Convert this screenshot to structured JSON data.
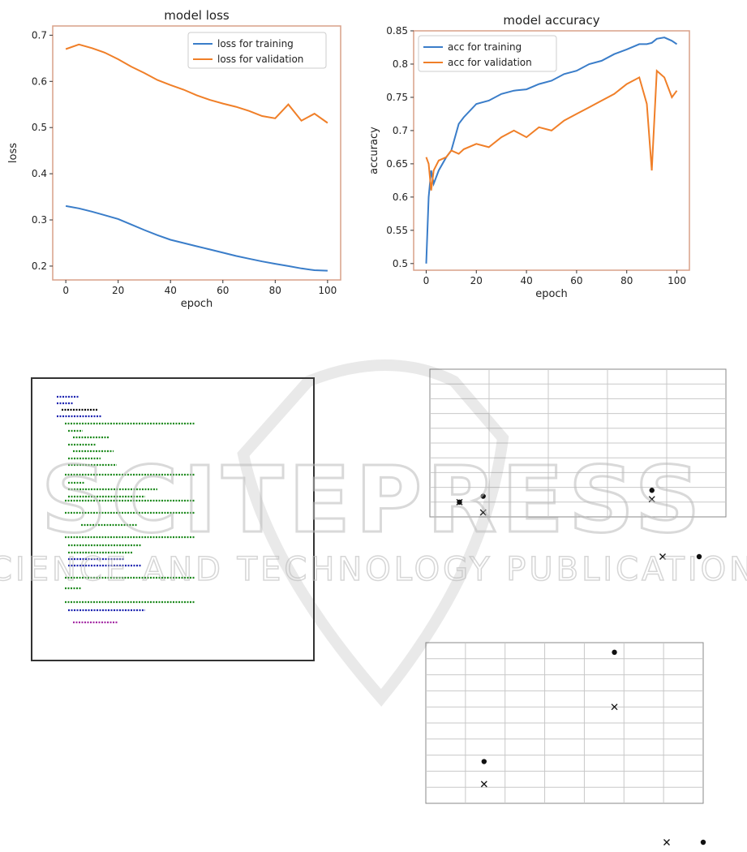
{
  "chart_data": [
    {
      "type": "line",
      "title": "model loss",
      "xlabel": "epoch",
      "ylabel": "loss",
      "xlim": [
        -5,
        105
      ],
      "ylim": [
        0.17,
        0.72
      ],
      "xticks": [
        0,
        20,
        40,
        60,
        80,
        100
      ],
      "yticks": [
        0.2,
        0.3,
        0.4,
        0.5,
        0.6,
        0.7
      ],
      "legend_position": "top-right",
      "x": [
        0,
        5,
        10,
        15,
        20,
        25,
        30,
        35,
        40,
        45,
        50,
        55,
        60,
        65,
        70,
        75,
        80,
        85,
        90,
        95,
        100
      ],
      "series": [
        {
          "name": "loss for training",
          "color": "#3a7dc9",
          "values": [
            0.33,
            0.325,
            0.318,
            0.31,
            0.302,
            0.29,
            0.278,
            0.267,
            0.257,
            0.25,
            0.243,
            0.236,
            0.229,
            0.222,
            0.216,
            0.21,
            0.205,
            0.2,
            0.195,
            0.191,
            0.19
          ]
        },
        {
          "name": "loss for validation",
          "color": "#f07f28",
          "values": [
            0.67,
            0.68,
            0.672,
            0.662,
            0.648,
            0.632,
            0.618,
            0.603,
            0.592,
            0.582,
            0.57,
            0.56,
            0.552,
            0.545,
            0.536,
            0.525,
            0.52,
            0.55,
            0.515,
            0.53,
            0.51
          ]
        }
      ]
    },
    {
      "type": "line",
      "title": "model accuracy",
      "xlabel": "epoch",
      "ylabel": "accuracy",
      "xlim": [
        -5,
        105
      ],
      "ylim": [
        0.49,
        0.85
      ],
      "xticks": [
        0,
        20,
        40,
        60,
        80,
        100
      ],
      "yticks": [
        0.5,
        0.55,
        0.6,
        0.65,
        0.7,
        0.75,
        0.8,
        0.85
      ],
      "legend_position": "top-left",
      "x": [
        0,
        1,
        2,
        3,
        5,
        8,
        10,
        13,
        15,
        20,
        25,
        30,
        35,
        40,
        45,
        50,
        55,
        60,
        65,
        70,
        75,
        80,
        85,
        88,
        90,
        92,
        95,
        98,
        100
      ],
      "series": [
        {
          "name": "acc  for training",
          "color": "#3a7dc9",
          "values": [
            0.5,
            0.6,
            0.64,
            0.62,
            0.64,
            0.66,
            0.67,
            0.71,
            0.72,
            0.74,
            0.745,
            0.755,
            0.76,
            0.762,
            0.77,
            0.775,
            0.785,
            0.79,
            0.8,
            0.805,
            0.815,
            0.822,
            0.83,
            0.83,
            0.832,
            0.838,
            0.84,
            0.835,
            0.83
          ]
        },
        {
          "name": "acc  for validation",
          "color": "#f07f28",
          "values": [
            0.66,
            0.65,
            0.61,
            0.64,
            0.655,
            0.66,
            0.67,
            0.665,
            0.672,
            0.68,
            0.675,
            0.69,
            0.7,
            0.69,
            0.705,
            0.7,
            0.715,
            0.725,
            0.735,
            0.745,
            0.755,
            0.77,
            0.78,
            0.74,
            0.64,
            0.79,
            0.78,
            0.75,
            0.76
          ]
        }
      ]
    },
    {
      "type": "scatter",
      "title": "",
      "grid": true,
      "xlim": [
        0,
        10
      ],
      "ylim": [
        0,
        10
      ],
      "columns": 5,
      "rows": 10,
      "series": [
        {
          "marker": "dot",
          "points": [
            [
              1.0,
              1.0
            ],
            [
              1.8,
              1.4
            ],
            [
              7.5,
              1.8
            ]
          ]
        },
        {
          "marker": "x",
          "points": [
            [
              1.0,
              1.0
            ],
            [
              1.8,
              0.3
            ],
            [
              7.5,
              1.2
            ]
          ]
        }
      ],
      "legend_markers": [
        "x",
        "dot"
      ]
    },
    {
      "type": "scatter",
      "title": "",
      "grid": true,
      "xlim": [
        0,
        10
      ],
      "ylim": [
        0,
        10
      ],
      "columns": 7,
      "rows": 10,
      "series": [
        {
          "marker": "dot",
          "points": [
            [
              6.8,
              9.4
            ],
            [
              2.1,
              2.6
            ]
          ]
        },
        {
          "marker": "x",
          "points": [
            [
              6.8,
              6.0
            ],
            [
              2.1,
              1.2
            ]
          ]
        }
      ],
      "legend_markers": [
        "x",
        "dot"
      ]
    }
  ],
  "watermark": {
    "line1": "SCITEPRESS",
    "line2": "SCIENCE AND TECHNOLOGY PUBLICATIONS"
  },
  "code_panel": {
    "icon": "code-snippet-icon",
    "colors": [
      "#1a22b0",
      "#1d8a1d",
      "#a42ba4",
      "#000000"
    ]
  }
}
